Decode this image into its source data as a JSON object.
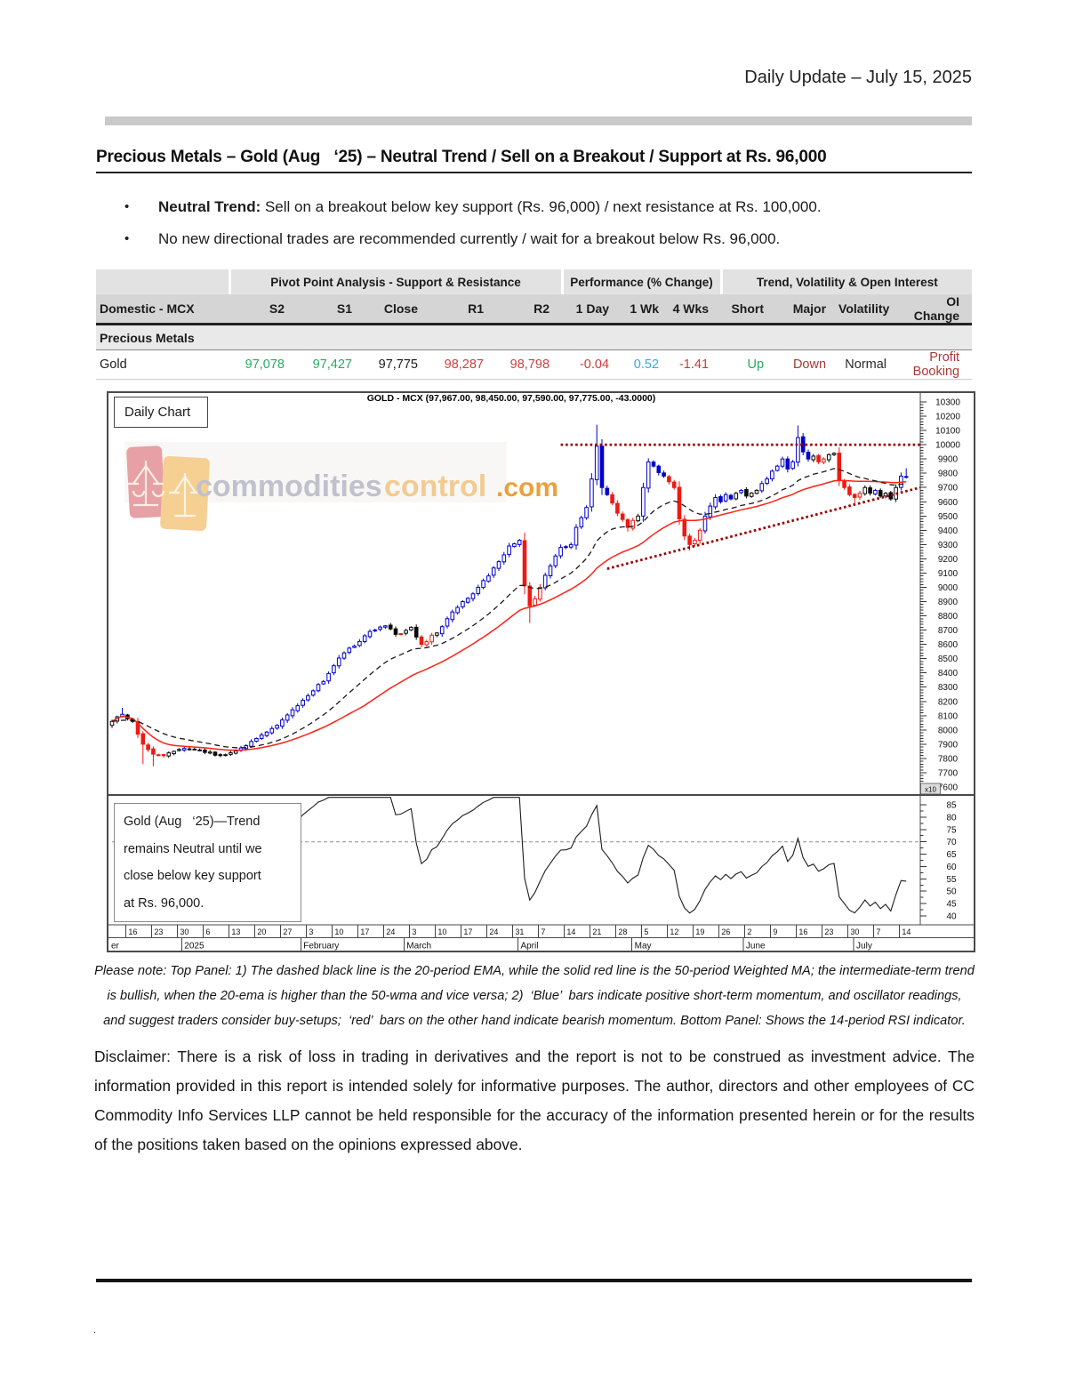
{
  "page": {
    "header_right": "Daily Update – July 15, 2025",
    "section_title": "Precious Metals – Gold (Aug   ‘25) – Neutral Trend / Sell on a Breakout / Support at Rs. 96,000",
    "bullets": [
      {
        "marker": "•",
        "lead": "Neutral Trend: ",
        "text": "Sell on a breakout below key support (Rs. 96,000) / next resistance at Rs. 100,000."
      },
      {
        "marker": "•",
        "lead": "",
        "text": "No new directional trades are recommended currently / wait for a breakout below Rs. 96,000."
      }
    ],
    "note_lines": [
      "Please note: Top Panel: 1) The dashed black line is the 20-period EMA, while the solid red line is the 50-period Weighted MA; the intermediate-term trend",
      "is bullish, when the 20-ema is higher than the 50-wma and vice versa; 2)  ‘Blue’  bars indicate positive short-term momentum, and oscillator readings,",
      "and suggest traders consider buy-setups;  ‘red’  bars on the other hand indicate bearish momentum. Bottom Panel: Shows the 14-period RSI indicator."
    ],
    "disclaimer": "Disclaimer: There is a risk of loss in trading in derivatives and the report is not to be construed as investment advice. The information provided in this report is intended solely for informative purposes. The author, directors and other employees of CC Commodity Info Services LLP cannot be held responsible for the accuracy of the information presented herein or for the results of the positions taken based on the opinions expressed above.",
    "footer_dot": "."
  },
  "table": {
    "group_headers": [
      "Pivot Point Analysis - Support & Resistance",
      "Performance (% Change)",
      "Trend, Volatility & Open Interest"
    ],
    "columns": [
      "Domestic - MCX",
      "S2",
      "S1",
      "Close",
      "R1",
      "R2",
      "1 Day",
      "1 Wk",
      "4 Wks",
      "Short",
      "Major",
      "Volatility",
      "OI Change"
    ],
    "section_row": "Precious Metals",
    "rows": [
      {
        "values": [
          "Gold",
          "97,078",
          "97,427",
          "97,775",
          "98,287",
          "98,798",
          "-0.04",
          "0.52",
          "-1.41",
          "Up",
          "Down",
          "Normal",
          "Profit Booking"
        ]
      }
    ],
    "colors": {
      "support_green": "#27ab62",
      "resistance_red": "#d23f3f",
      "neg_red": "#cf3a3a",
      "info_blue": "#35aadc",
      "trend_up_green": "#27ab62",
      "trend_down_maroon": "#a63a35",
      "neutral_black": "#2a2a2a"
    }
  },
  "chart_data": {
    "type": "candlestick",
    "title": "GOLD - MCX (97,967.00, 98,450.00, 97,590.00, 97,775.00, -43.0000)",
    "panel_label": "Daily Chart",
    "watermark": {
      "part1": "commodities",
      "part2": "control",
      "part3": ".com",
      "gray": "#8f8fa6",
      "orange": "#e8a23c",
      "pink_block": "#d4545e",
      "orange_block": "#f0a93b"
    },
    "inset_note_lines": [
      "Gold (Aug   ‘25)—Trend",
      "remains Neutral until we",
      "close below key support",
      "at Rs. 96,000."
    ],
    "y_axis": {
      "min": 7600,
      "max": 10300,
      "step": 100,
      "minor_step": 20,
      "multiplier_label": "x10"
    },
    "rsi_axis": {
      "min": 40,
      "max": 85,
      "step": 5,
      "ref_level": 70,
      "period": 14
    },
    "bars": {
      "count": 155,
      "up_color": "#0000cc",
      "down_color": "#ee1a12",
      "neutral_color": "#0a0a0a",
      "up_threshold": 45,
      "lookback": 4
    },
    "overlays": {
      "ema_period": 20,
      "ema_color": "#1a1a1a",
      "wma_period": 50,
      "wma_color": "#ff2114",
      "dotted_color": "#990000",
      "resistance": {
        "from_bar": 87,
        "level": 10000
      },
      "support_line": {
        "from_bar": 96,
        "from_value": 9130,
        "to_value": 9700
      }
    },
    "price_keypoints": [
      [
        0,
        8060,
        0,
        0
      ],
      [
        2,
        8110,
        8155,
        0
      ],
      [
        4,
        8060,
        0,
        0
      ],
      [
        6,
        7900,
        0,
        7760
      ],
      [
        8,
        7830,
        0,
        7745
      ],
      [
        10,
        7820,
        0,
        0
      ],
      [
        12,
        7850,
        0,
        0
      ],
      [
        14,
        7870,
        0,
        0
      ],
      [
        16,
        7860,
        0,
        0
      ],
      [
        19,
        7845,
        0,
        0
      ],
      [
        21,
        7820,
        0,
        0
      ],
      [
        23,
        7840,
        0,
        0
      ],
      [
        26,
        7890,
        0,
        0
      ],
      [
        28,
        7940,
        0,
        0
      ],
      [
        31,
        8010,
        0,
        0
      ],
      [
        33,
        8070,
        0,
        0
      ],
      [
        36,
        8170,
        0,
        0
      ],
      [
        38,
        8240,
        0,
        0
      ],
      [
        41,
        8340,
        0,
        0
      ],
      [
        43,
        8450,
        0,
        0
      ],
      [
        45,
        8540,
        0,
        0
      ],
      [
        48,
        8620,
        0,
        0
      ],
      [
        50,
        8690,
        0,
        0
      ],
      [
        53,
        8730,
        0,
        0
      ],
      [
        55,
        8670,
        0,
        0
      ],
      [
        58,
        8720,
        0,
        0
      ],
      [
        60,
        8600,
        0,
        0
      ],
      [
        63,
        8680,
        0,
        0
      ],
      [
        65,
        8780,
        0,
        0
      ],
      [
        68,
        8900,
        0,
        0
      ],
      [
        71,
        9000,
        0,
        0
      ],
      [
        73,
        9080,
        0,
        0
      ],
      [
        75,
        9180,
        0,
        0
      ],
      [
        77,
        9290,
        0,
        0
      ],
      [
        79,
        9330,
        0,
        0
      ],
      [
        80,
        9010,
        0,
        0
      ],
      [
        81,
        8870,
        0,
        8750
      ],
      [
        82,
        8920,
        0,
        0
      ],
      [
        83,
        9000,
        0,
        0
      ],
      [
        85,
        9150,
        0,
        0
      ],
      [
        87,
        9280,
        0,
        0
      ],
      [
        89,
        9300,
        0,
        0
      ],
      [
        90,
        9420,
        0,
        0
      ],
      [
        92,
        9560,
        0,
        0
      ],
      [
        93,
        9760,
        0,
        0
      ],
      [
        94,
        9990,
        10140,
        0
      ],
      [
        95,
        9700,
        0,
        0
      ],
      [
        96,
        9650,
        0,
        0
      ],
      [
        98,
        9520,
        0,
        0
      ],
      [
        100,
        9420,
        0,
        9390
      ],
      [
        102,
        9500,
        0,
        0
      ],
      [
        103,
        9700,
        0,
        0
      ],
      [
        104,
        9880,
        9905,
        0
      ],
      [
        105,
        9850,
        0,
        0
      ],
      [
        107,
        9780,
        0,
        0
      ],
      [
        109,
        9700,
        0,
        0
      ],
      [
        110,
        9480,
        0,
        0
      ],
      [
        111,
        9360,
        0,
        0
      ],
      [
        112,
        9300,
        0,
        9258
      ],
      [
        113,
        9330,
        0,
        0
      ],
      [
        114,
        9400,
        0,
        0
      ],
      [
        115,
        9500,
        0,
        0
      ],
      [
        116,
        9570,
        0,
        0
      ],
      [
        117,
        9630,
        0,
        0
      ],
      [
        118,
        9600,
        0,
        0
      ],
      [
        119,
        9650,
        0,
        0
      ],
      [
        120,
        9620,
        0,
        0
      ],
      [
        121,
        9660,
        0,
        0
      ],
      [
        122,
        9680,
        0,
        0
      ],
      [
        123,
        9640,
        0,
        0
      ],
      [
        125,
        9680,
        0,
        0
      ],
      [
        127,
        9760,
        0,
        0
      ],
      [
        129,
        9850,
        0,
        0
      ],
      [
        130,
        9900,
        0,
        0
      ],
      [
        131,
        9830,
        0,
        0
      ],
      [
        132,
        9880,
        0,
        0
      ],
      [
        133,
        10050,
        10135,
        0
      ],
      [
        134,
        9950,
        0,
        0
      ],
      [
        135,
        9900,
        0,
        0
      ],
      [
        136,
        9920,
        0,
        0
      ],
      [
        137,
        9880,
        0,
        0
      ],
      [
        138,
        9900,
        0,
        0
      ],
      [
        139,
        9930,
        0,
        0
      ],
      [
        140,
        9940,
        0,
        0
      ],
      [
        141,
        9750,
        0,
        0
      ],
      [
        142,
        9700,
        0,
        0
      ],
      [
        143,
        9650,
        0,
        0
      ],
      [
        144,
        9630,
        0,
        9575
      ],
      [
        145,
        9660,
        0,
        0
      ],
      [
        146,
        9700,
        0,
        0
      ],
      [
        147,
        9660,
        0,
        0
      ],
      [
        148,
        9680,
        0,
        0
      ],
      [
        149,
        9640,
        0,
        0
      ],
      [
        150,
        9660,
        0,
        0
      ],
      [
        151,
        9620,
        0,
        0
      ],
      [
        152,
        9700,
        0,
        0
      ],
      [
        153,
        9780,
        0,
        0
      ],
      [
        154,
        9777,
        9835,
        0
      ]
    ],
    "x_axis": {
      "first_tick_bar": 3,
      "bars_per_week": 5,
      "tick_labels": [
        "16",
        "23",
        "30",
        "6",
        "13",
        "20",
        "27",
        "3",
        "10",
        "17",
        "24",
        "3",
        "10",
        "17",
        "24",
        "31",
        "7",
        "14",
        "21",
        "28",
        "5",
        "12",
        "19",
        "26",
        "2",
        "9",
        "16",
        "23",
        "30",
        "7",
        "14"
      ],
      "months": [
        {
          "label": "er",
          "bar": -1
        },
        {
          "label": "2025",
          "bar": 13.5
        },
        {
          "label": "February",
          "bar": 36.6
        },
        {
          "label": "March",
          "bar": 56.6
        },
        {
          "label": "April",
          "bar": 78.7
        },
        {
          "label": "May",
          "bar": 100.8
        },
        {
          "label": "June",
          "bar": 122.4
        },
        {
          "label": "July",
          "bar": 143.8
        }
      ]
    }
  }
}
